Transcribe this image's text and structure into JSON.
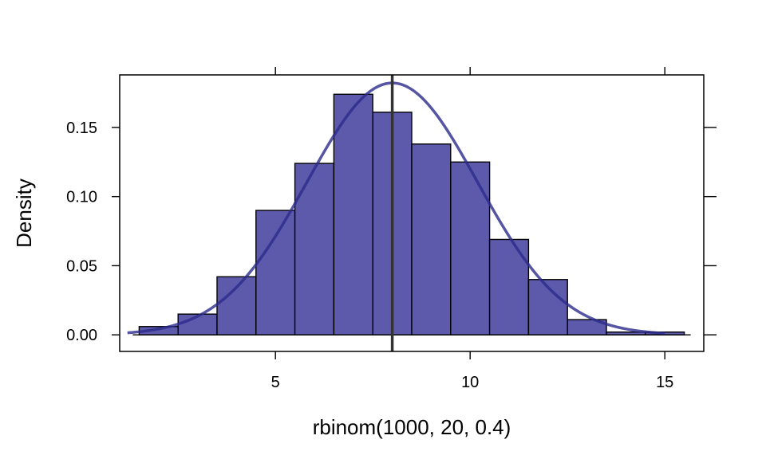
{
  "chart_data": {
    "type": "bar",
    "subtype": "histogram-with-density",
    "xlabel": "rbinom(1000, 20, 0.4)",
    "ylabel": "Density",
    "xlim": [
      1.0,
      16.0
    ],
    "ylim": [
      -0.012,
      0.188
    ],
    "x_ticks": [
      5,
      10,
      15
    ],
    "x_tick_labels": [
      "5",
      "10",
      "15"
    ],
    "y_ticks": [
      0.0,
      0.05,
      0.1,
      0.15
    ],
    "y_tick_labels": [
      "0.00",
      "0.05",
      "0.10",
      "0.15"
    ],
    "bins": [
      {
        "x0": 1.5,
        "x1": 2.5,
        "density": 0.006
      },
      {
        "x0": 2.5,
        "x1": 3.5,
        "density": 0.015
      },
      {
        "x0": 3.5,
        "x1": 4.5,
        "density": 0.042
      },
      {
        "x0": 4.5,
        "x1": 5.5,
        "density": 0.09
      },
      {
        "x0": 5.5,
        "x1": 6.5,
        "density": 0.124
      },
      {
        "x0": 6.5,
        "x1": 7.5,
        "density": 0.174
      },
      {
        "x0": 7.5,
        "x1": 8.5,
        "density": 0.161
      },
      {
        "x0": 8.5,
        "x1": 9.5,
        "density": 0.138
      },
      {
        "x0": 9.5,
        "x1": 10.5,
        "density": 0.125
      },
      {
        "x0": 10.5,
        "x1": 11.5,
        "density": 0.069
      },
      {
        "x0": 11.5,
        "x1": 12.5,
        "density": 0.04
      },
      {
        "x0": 12.5,
        "x1": 13.5,
        "density": 0.011
      },
      {
        "x0": 13.5,
        "x1": 14.5,
        "density": 0.002
      },
      {
        "x0": 14.5,
        "x1": 15.5,
        "density": 0.002
      }
    ],
    "density_curve": {
      "mean": 8.0,
      "sd": 2.19,
      "x_range": [
        1.2,
        15.0
      ]
    },
    "reference_line": {
      "x": 8.0
    },
    "grid": false,
    "legend": "none",
    "colors": {
      "bar_fill": "#5e5aab",
      "bar_stroke": "#000000",
      "curve": "#2b2a8c",
      "reference_line": "#333333"
    }
  }
}
